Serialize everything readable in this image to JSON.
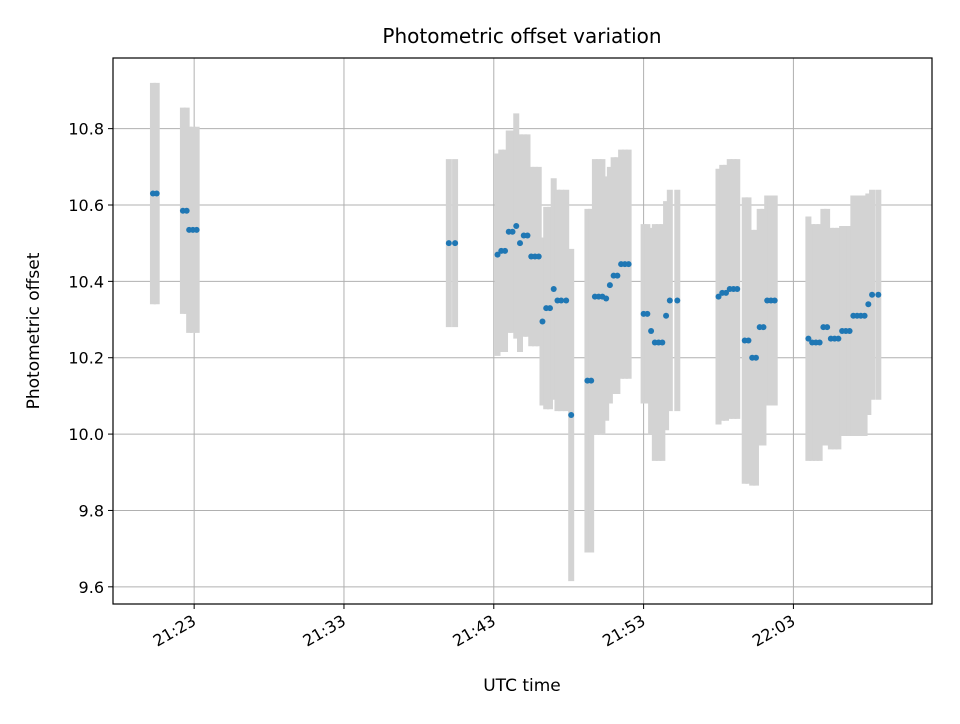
{
  "colors": {
    "point": "#1f77b4",
    "errorbar": "#d3d3d3",
    "grid": "#b0b0b0"
  },
  "chart_data": {
    "type": "scatter",
    "title": "Photometric offset variation",
    "xlabel": "UTC time",
    "ylabel": "Photometric offset",
    "grid": true,
    "x_tick_labels": [
      "21:23",
      "21:33",
      "21:43",
      "21:53",
      "22:03"
    ],
    "x_ticks": [
      "21:23",
      "21:33",
      "21:43",
      "21:53",
      "22:03"
    ],
    "y_ticks": [
      9.6,
      9.8,
      10.0,
      10.2,
      10.4,
      10.6,
      10.8
    ],
    "y_tick_labels": [
      "9.6",
      "9.8",
      "10.0",
      "10.2",
      "10.4",
      "10.6",
      "10.8"
    ],
    "xlim": [
      "21:17:35",
      "22:12:15"
    ],
    "ylim": [
      9.555,
      10.985
    ],
    "series": [
      {
        "x": [
          "21:20:15",
          "21:20:30",
          "21:22:15",
          "21:22:30",
          "21:22:40",
          "21:22:55",
          "21:23:10",
          "21:40:00",
          "21:40:25",
          "21:43:15",
          "21:43:30",
          "21:43:45",
          "21:44:00",
          "21:44:15",
          "21:44:30",
          "21:44:45",
          "21:45:00",
          "21:45:15",
          "21:45:30",
          "21:45:45",
          "21:46:00",
          "21:46:15",
          "21:46:30",
          "21:46:45",
          "21:47:00",
          "21:47:15",
          "21:47:30",
          "21:47:50",
          "21:48:10",
          "21:49:15",
          "21:49:30",
          "21:49:45",
          "21:50:00",
          "21:50:15",
          "21:50:30",
          "21:50:45",
          "21:51:00",
          "21:51:15",
          "21:51:30",
          "21:51:45",
          "21:52:00",
          "21:53:00",
          "21:53:15",
          "21:53:30",
          "21:53:45",
          "21:54:00",
          "21:54:15",
          "21:54:30",
          "21:54:45",
          "21:55:15",
          "21:58:00",
          "21:58:15",
          "21:58:30",
          "21:58:45",
          "21:59:00",
          "21:59:15",
          "21:59:45",
          "22:00:00",
          "22:00:15",
          "22:00:30",
          "22:00:45",
          "22:01:00",
          "22:01:15",
          "22:01:30",
          "22:01:45",
          "22:04:00",
          "22:04:15",
          "22:04:30",
          "22:04:45",
          "22:05:00",
          "22:05:15",
          "22:05:30",
          "22:05:45",
          "22:06:00",
          "22:06:15",
          "22:06:30",
          "22:06:45",
          "22:07:00",
          "22:07:15",
          "22:07:30",
          "22:07:45",
          "22:08:00",
          "22:08:15",
          "22:08:40"
        ],
        "y": [
          10.63,
          10.63,
          10.585,
          10.585,
          10.535,
          10.535,
          10.535,
          10.5,
          10.5,
          10.47,
          10.48,
          10.48,
          10.53,
          10.53,
          10.545,
          10.5,
          10.52,
          10.52,
          10.465,
          10.465,
          10.465,
          10.295,
          10.33,
          10.33,
          10.38,
          10.35,
          10.35,
          10.35,
          10.05,
          10.14,
          10.14,
          10.36,
          10.36,
          10.36,
          10.355,
          10.39,
          10.415,
          10.415,
          10.445,
          10.445,
          10.445,
          10.315,
          10.315,
          10.27,
          10.24,
          10.24,
          10.24,
          10.31,
          10.35,
          10.35,
          10.36,
          10.37,
          10.37,
          10.38,
          10.38,
          10.38,
          10.245,
          10.245,
          10.2,
          10.2,
          10.28,
          10.28,
          10.35,
          10.35,
          10.35,
          10.25,
          10.24,
          10.24,
          10.24,
          10.28,
          10.28,
          10.25,
          10.25,
          10.25,
          10.27,
          10.27,
          10.27,
          10.31,
          10.31,
          10.31,
          10.31,
          10.34,
          10.365,
          10.365
        ],
        "yerr": [
          0.29,
          0.29,
          0.27,
          0.27,
          0.27,
          0.27,
          0.27,
          0.22,
          0.22,
          0.265,
          0.265,
          0.265,
          0.265,
          0.265,
          0.295,
          0.285,
          0.265,
          0.265,
          0.235,
          0.235,
          0.235,
          0.22,
          0.265,
          0.265,
          0.29,
          0.29,
          0.29,
          0.29,
          0.435,
          0.45,
          0.45,
          0.36,
          0.36,
          0.36,
          0.32,
          0.31,
          0.31,
          0.31,
          0.3,
          0.3,
          0.3,
          0.235,
          0.235,
          0.27,
          0.31,
          0.31,
          0.31,
          0.3,
          0.29,
          0.29,
          0.335,
          0.335,
          0.335,
          0.34,
          0.34,
          0.34,
          0.375,
          0.375,
          0.335,
          0.335,
          0.31,
          0.31,
          0.275,
          0.275,
          0.275,
          0.32,
          0.31,
          0.31,
          0.31,
          0.31,
          0.31,
          0.29,
          0.29,
          0.29,
          0.275,
          0.275,
          0.275,
          0.315,
          0.315,
          0.315,
          0.315,
          0.29,
          0.275,
          0.275
        ]
      }
    ]
  }
}
